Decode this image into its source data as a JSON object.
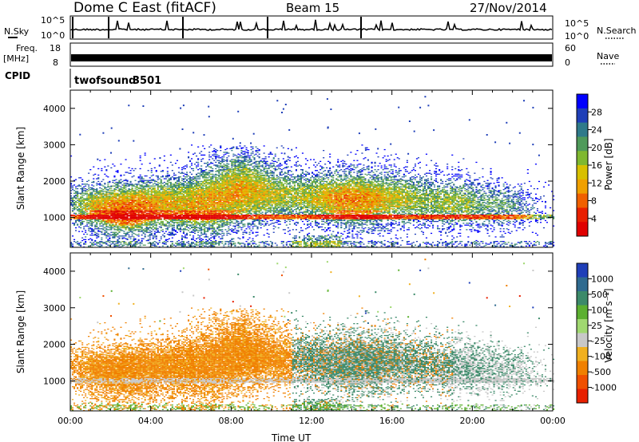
{
  "header": {
    "station": "Dome C East (fitACF)",
    "beam": "Beam 15",
    "date": "27/Nov/2014"
  },
  "noise_panel": {
    "left_label": "N.Sky",
    "left_ticks": [
      "10^5",
      "10^0"
    ],
    "right_ticks": [
      "10^5",
      "10^0"
    ],
    "right_label": "N.Search"
  },
  "freq_panel": {
    "left_label": "Freq.",
    "left_unit": "[MHz]",
    "left_ticks": [
      "18",
      "8"
    ],
    "right_ticks": [
      "60",
      "0"
    ],
    "right_label": "Nave"
  },
  "cpid_panel": {
    "label": "CPID",
    "program": "twofsound",
    "cpid": "3501"
  },
  "chart_data": [
    {
      "type": "heatmap",
      "title": "",
      "ylabel": "Slant Range [km]",
      "ylim": [
        180,
        4500
      ],
      "yticks": [
        "1000",
        "2000",
        "3000",
        "4000"
      ],
      "colorbar": {
        "label": "Power [dB]",
        "ticks": [
          "4",
          "8",
          "12",
          "16",
          "20",
          "24",
          "28"
        ],
        "colors": [
          "#0000ff",
          "#1f3fb8",
          "#2f7a8a",
          "#4f9a5a",
          "#7fb830",
          "#d8c000",
          "#f0a000",
          "#f06000",
          "#e82000",
          "#e00000"
        ]
      }
    },
    {
      "type": "heatmap",
      "title": "",
      "ylabel": "Slant Range [km]",
      "xlabel": "Time UT",
      "xticks": [
        "00:00",
        "04:00",
        "08:00",
        "12:00",
        "16:00",
        "20:00",
        "00:00"
      ],
      "xlim": [
        0,
        24
      ],
      "ylim": [
        180,
        4500
      ],
      "yticks": [
        "1000",
        "2000",
        "3000",
        "4000"
      ],
      "colorbar": {
        "label": "Velocity [m s⁻¹]",
        "ticks": [
          "1000",
          "500",
          "100",
          "25",
          "-25",
          "-100",
          "-500",
          "-1000"
        ],
        "colors": [
          "#1f3fb8",
          "#2f6a8f",
          "#3c8a6a",
          "#5cb030",
          "#a0d870",
          "#c8c8c8",
          "#f0b020",
          "#f08000",
          "#f05000",
          "#e82000"
        ]
      }
    }
  ]
}
